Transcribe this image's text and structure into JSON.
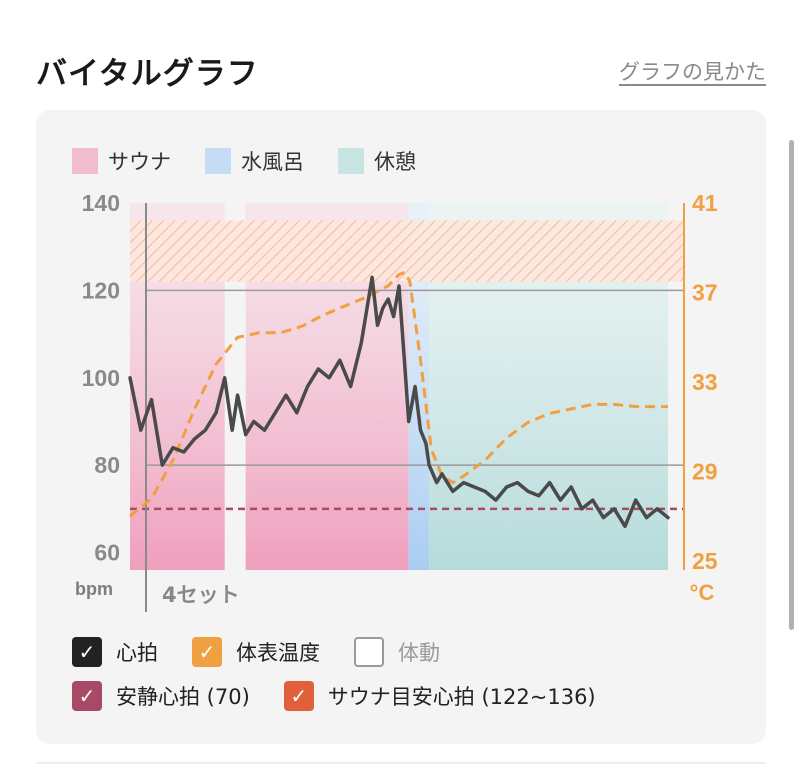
{
  "header": {
    "title": "バイタルグラフ",
    "help_link": "グラフの見かた"
  },
  "legend": [
    {
      "label": "サウナ",
      "color": "#f1bcd0"
    },
    {
      "label": "水風呂",
      "color": "#c4dcf5"
    },
    {
      "label": "休憩",
      "color": "#c8e4e3"
    }
  ],
  "toggles": {
    "heart_rate": {
      "label": "心拍",
      "checked": true,
      "color": "#222222"
    },
    "body_temp": {
      "label": "体表温度",
      "checked": true,
      "color": "#f0a040"
    },
    "movement": {
      "label": "体動",
      "checked": false
    },
    "resting_hr": {
      "label": "安静心拍 (70)",
      "checked": true,
      "color": "#a84a66"
    },
    "sauna_target": {
      "label": "サウナ目安心拍 (122~136)",
      "checked": true,
      "color": "#e0603a"
    }
  },
  "chart_data": {
    "type": "line",
    "x_label": "4セット",
    "y_left": {
      "unit": "bpm",
      "ticks": [
        140,
        120,
        100,
        80,
        60
      ],
      "range": [
        56,
        140
      ]
    },
    "y_right": {
      "unit": "°C",
      "ticks": [
        41,
        37,
        33,
        29,
        25
      ],
      "range": [
        24.6,
        41
      ],
      "color": "#f0a040"
    },
    "phases": [
      {
        "name": "サウナ",
        "start": 0,
        "end": 0.176
      },
      {
        "name": "サウナ",
        "start": 0.215,
        "end": 0.518
      },
      {
        "name": "水風呂",
        "start": 0.518,
        "end": 0.556
      },
      {
        "name": "休憩",
        "start": 0.556,
        "end": 1.0
      }
    ],
    "resting_hr": 70,
    "sauna_target_hr": [
      122,
      136
    ],
    "series": [
      {
        "name": "心拍",
        "color": "#4a4a4a",
        "x": [
          0.0,
          0.02,
          0.04,
          0.06,
          0.08,
          0.1,
          0.12,
          0.14,
          0.16,
          0.176,
          0.19,
          0.2,
          0.215,
          0.23,
          0.25,
          0.27,
          0.29,
          0.31,
          0.33,
          0.35,
          0.37,
          0.39,
          0.41,
          0.43,
          0.45,
          0.46,
          0.47,
          0.48,
          0.49,
          0.5,
          0.51,
          0.518,
          0.53,
          0.54,
          0.55,
          0.556,
          0.57,
          0.58,
          0.6,
          0.62,
          0.64,
          0.66,
          0.68,
          0.7,
          0.72,
          0.74,
          0.76,
          0.78,
          0.8,
          0.82,
          0.84,
          0.86,
          0.88,
          0.9,
          0.92,
          0.94,
          0.96,
          0.98,
          1.0
        ],
        "values": [
          100,
          88,
          95,
          80,
          84,
          83,
          86,
          88,
          92,
          100,
          88,
          96,
          87,
          90,
          88,
          92,
          96,
          92,
          98,
          102,
          100,
          104,
          98,
          108,
          123,
          112,
          116,
          118,
          114,
          121,
          104,
          90,
          98,
          88,
          85,
          80,
          76,
          78,
          74,
          76,
          75,
          74,
          72,
          75,
          76,
          74,
          73,
          76,
          72,
          75,
          70,
          72,
          68,
          70,
          66,
          72,
          68,
          70,
          68
        ]
      },
      {
        "name": "体表温度",
        "color": "#f0a040",
        "x": [
          0.0,
          0.04,
          0.08,
          0.12,
          0.16,
          0.2,
          0.24,
          0.28,
          0.32,
          0.36,
          0.4,
          0.44,
          0.48,
          0.5,
          0.51,
          0.52,
          0.54,
          0.56,
          0.58,
          0.6,
          0.62,
          0.66,
          0.7,
          0.74,
          0.78,
          0.82,
          0.86,
          0.9,
          0.94,
          0.98,
          1.0
        ],
        "values": [
          27.0,
          27.8,
          29.5,
          31.8,
          33.8,
          35.0,
          35.2,
          35.2,
          35.5,
          36.0,
          36.4,
          36.8,
          37.3,
          37.8,
          37.9,
          37.5,
          34.0,
          30.0,
          28.8,
          28.5,
          28.8,
          29.5,
          30.5,
          31.2,
          31.6,
          31.8,
          32.0,
          32.0,
          31.9,
          31.9,
          31.9
        ]
      }
    ]
  }
}
